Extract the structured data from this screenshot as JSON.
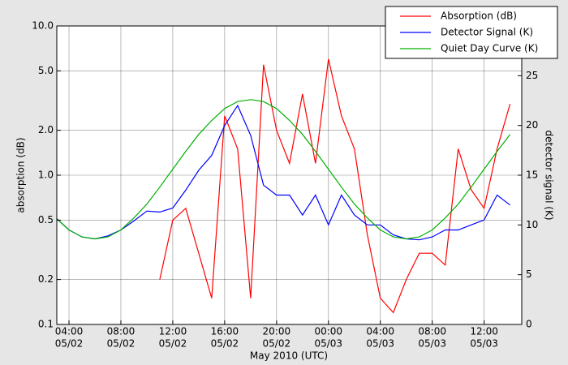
{
  "chart_data": {
    "type": "line",
    "xlabel": "May 2010 (UTC)",
    "ylabel": "absorption (dB)",
    "y2label": "detector signal (K)",
    "x": [
      3,
      4,
      5,
      6,
      7,
      8,
      9,
      10,
      11,
      12,
      13,
      14,
      15,
      16,
      17,
      18,
      19,
      20,
      21,
      22,
      23,
      24,
      25,
      26,
      27,
      28,
      29,
      30,
      31,
      32,
      33,
      34,
      35,
      36,
      37,
      38
    ],
    "xlim": [
      3.06,
      38.9
    ],
    "xticks": [
      {
        "value": 4,
        "label": [
          "04:00",
          "05/02"
        ]
      },
      {
        "value": 8,
        "label": [
          "08:00",
          "05/02"
        ]
      },
      {
        "value": 12,
        "label": [
          "12:00",
          "05/02"
        ]
      },
      {
        "value": 16,
        "label": [
          "16:00",
          "05/02"
        ]
      },
      {
        "value": 20,
        "label": [
          "20:00",
          "05/02"
        ]
      },
      {
        "value": 24,
        "label": [
          "00:00",
          "05/03"
        ]
      },
      {
        "value": 28,
        "label": [
          "04:00",
          "05/03"
        ]
      },
      {
        "value": 32,
        "label": [
          "08:00",
          "05/03"
        ]
      },
      {
        "value": 36,
        "label": [
          "12:00",
          "05/03"
        ]
      }
    ],
    "ylim": [
      0.1,
      10
    ],
    "log_y": true,
    "yticks": [
      0.1,
      0.2,
      0.5,
      {
        "value": 1,
        "label": "1.0"
      },
      {
        "value": 2,
        "label": "2.0"
      },
      {
        "value": 5,
        "label": "5.0"
      },
      {
        "value": 10,
        "label": "10.0"
      }
    ],
    "y2lim": [
      0,
      30
    ],
    "y2ticks": [
      0,
      5,
      10,
      15,
      20,
      25
    ],
    "grid": true,
    "legend": "upper right",
    "series": [
      {
        "name": "Absorption (dB)",
        "color": "#ff0000",
        "values": [
          null,
          null,
          null,
          null,
          null,
          null,
          null,
          null,
          0.2,
          0.5,
          0.6,
          0.3,
          0.15,
          2.5,
          1.5,
          0.15,
          5.5,
          2.0,
          1.2,
          3.5,
          1.2,
          6.0,
          2.5,
          1.5,
          0.4,
          0.15,
          0.12,
          0.2,
          0.3,
          0.3,
          0.25,
          1.5,
          0.8,
          0.6,
          1.5,
          3.0
        ]
      },
      {
        "name": "Detector Signal (K)",
        "color": "#0000ff",
        "axis": "y2",
        "values": [
          10.7,
          9.5,
          8.8,
          8.6,
          8.9,
          9.5,
          10.4,
          11.4,
          11.3,
          11.7,
          13.5,
          15.5,
          17,
          20,
          22,
          19,
          14,
          13,
          13,
          11,
          13,
          10,
          13,
          11,
          10,
          10,
          9,
          8.6,
          8.5,
          8.8,
          9.5,
          9.5,
          10,
          10.5,
          13,
          12
        ]
      },
      {
        "name": "Quiet Day Curve (K)",
        "color": "#00b000",
        "axis": "y2",
        "values": [
          10.7,
          9.5,
          8.8,
          8.6,
          8.8,
          9.5,
          10.7,
          12.1,
          13.8,
          15.6,
          17.4,
          19.1,
          20.5,
          21.7,
          22.4,
          22.6,
          22.4,
          21.7,
          20.5,
          19.1,
          17.4,
          15.6,
          13.8,
          12.1,
          10.7,
          9.5,
          8.8,
          8.6,
          8.8,
          9.5,
          10.7,
          12.1,
          13.8,
          15.6,
          17.4,
          19.1
        ]
      }
    ]
  }
}
